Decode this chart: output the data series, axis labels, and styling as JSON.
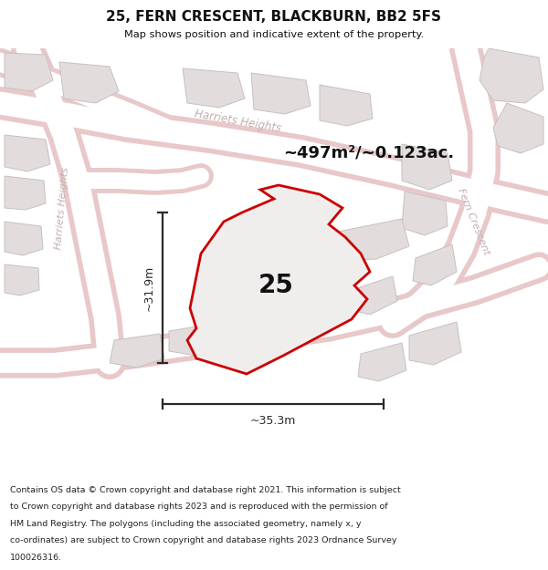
{
  "title": "25, FERN CRESCENT, BLACKBURN, BB2 5FS",
  "subtitle": "Map shows position and indicative extent of the property.",
  "area_label": "~497m²/~0.123ac.",
  "plot_number": "25",
  "dim_height": "~31.9m",
  "dim_width": "~35.3m",
  "footer_lines": [
    "Contains OS data © Crown copyright and database right 2021. This information is subject",
    "to Crown copyright and database rights 2023 and is reproduced with the permission of",
    "HM Land Registry. The polygons (including the associated geometry, namely x, y",
    "co-ordinates) are subject to Crown copyright and database rights 2023 Ordnance Survey",
    "100026316."
  ],
  "map_bg": "#f7f4f4",
  "road_outline_color": "#e8c8c8",
  "road_fill_color": "#ffffff",
  "building_fill": "#e2dcdc",
  "building_edge": "#c8c0c0",
  "plot_fill": "#f0eded",
  "plot_edge": "#cc0000",
  "dim_color": "#2a2a2a",
  "street_label_color": "#c0b0b0",
  "label_color": "#111111",
  "title_color": "#111111"
}
